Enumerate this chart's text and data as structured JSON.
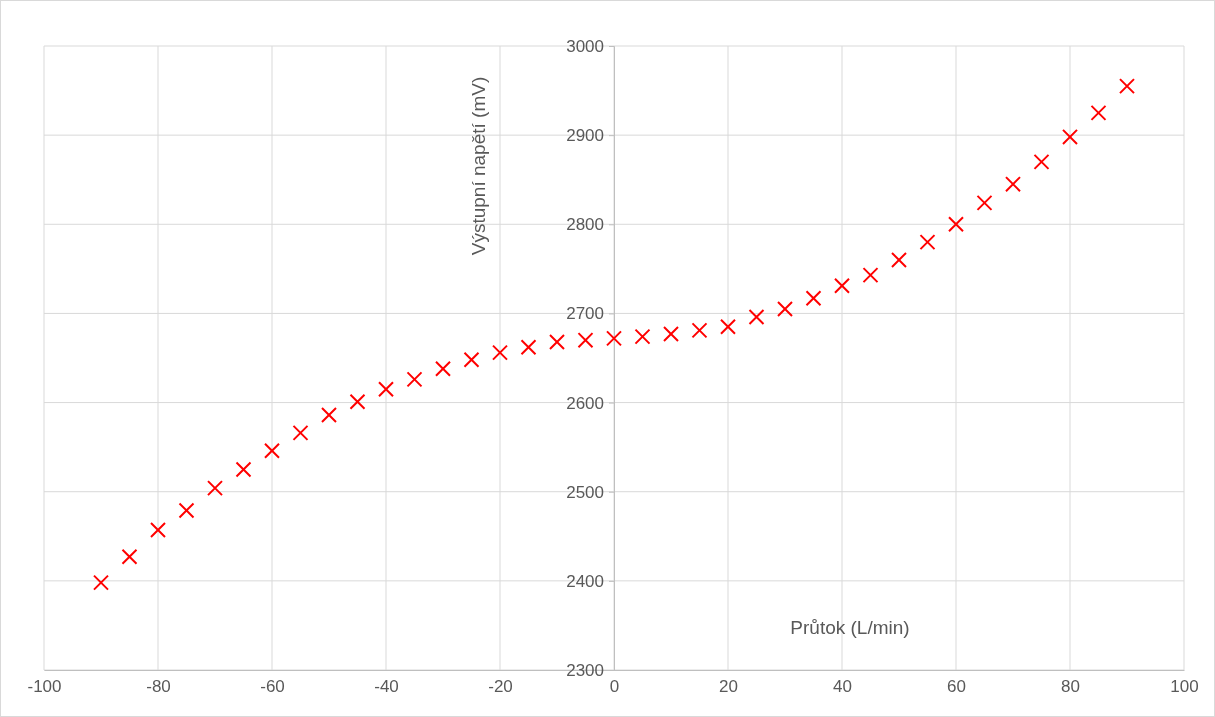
{
  "chart_data": {
    "type": "scatter",
    "xlabel": "Průtok (L/min)",
    "ylabel": "Výstupní napětí (mV)",
    "x": [
      -90,
      -85,
      -80,
      -75,
      -70,
      -65,
      -60,
      -55,
      -50,
      -45,
      -40,
      -35,
      -30,
      -25,
      -20,
      -15,
      -10,
      -5,
      0,
      5,
      10,
      15,
      20,
      25,
      30,
      35,
      40,
      45,
      50,
      55,
      60,
      65,
      70,
      75,
      80,
      85,
      90
    ],
    "series": [
      {
        "color": "#ff0000",
        "values": [
          2398,
          2427,
          2457,
          2479,
          2504,
          2525,
          2546,
          2566,
          2586,
          2601,
          2615,
          2626,
          2638,
          2648,
          2656,
          2662,
          2668,
          2670,
          2672,
          2674,
          2677,
          2681,
          2685,
          2696,
          2705,
          2717,
          2731,
          2743,
          2760,
          2780,
          2800,
          2824,
          2845,
          2870,
          2898,
          2925,
          2955
        ]
      }
    ],
    "xlim": [
      -100,
      100
    ],
    "xticks": [
      -100,
      -80,
      -60,
      -40,
      -20,
      0,
      20,
      40,
      60,
      80,
      100
    ],
    "ylim": [
      2300,
      3000
    ],
    "yticks": [
      2300,
      2400,
      2500,
      2600,
      2700,
      2800,
      2900,
      3000
    ],
    "grid": true,
    "marker": "cross"
  }
}
